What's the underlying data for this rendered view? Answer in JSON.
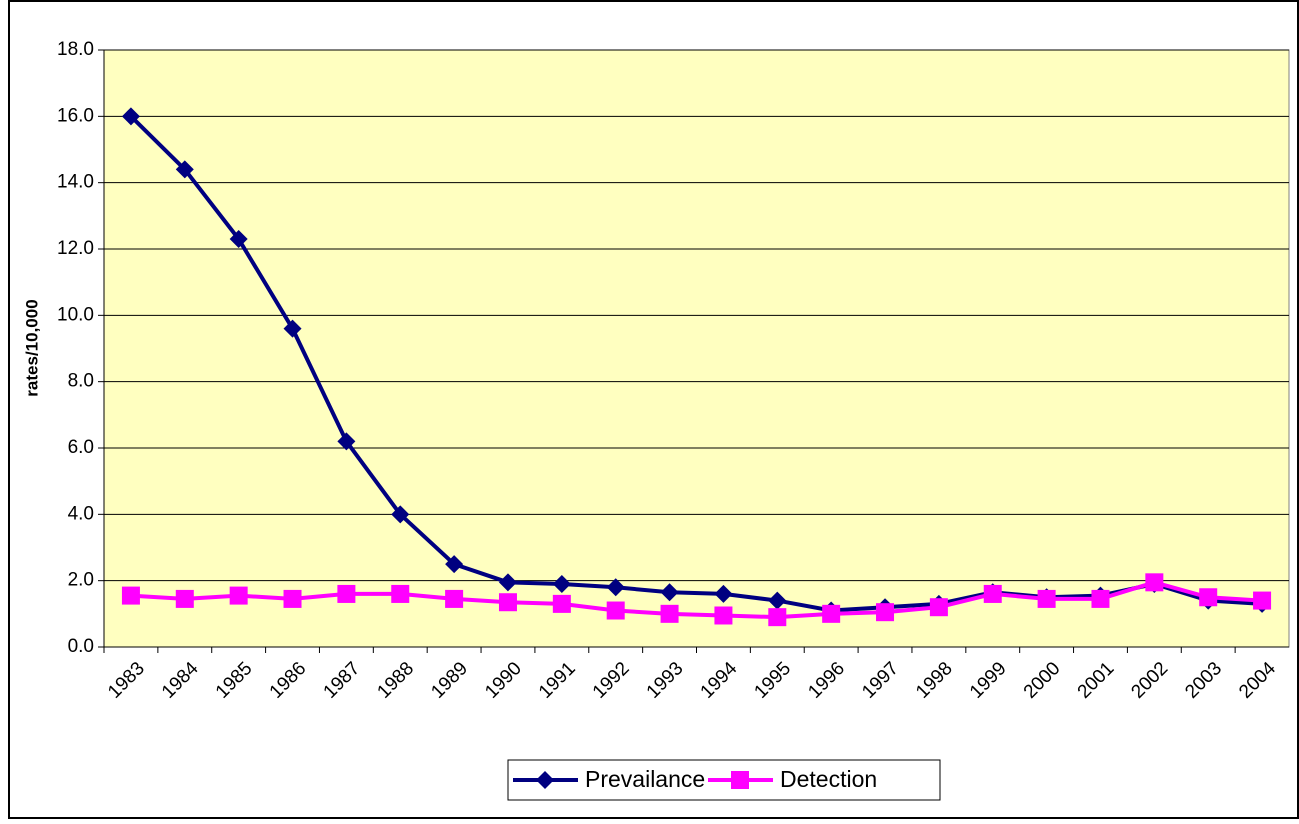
{
  "chart_data": {
    "type": "line",
    "y_label": "rates/10,000",
    "categories": [
      "1983",
      "1984",
      "1985",
      "1986",
      "1987",
      "1988",
      "1989",
      "1990",
      "1991",
      "1992",
      "1993",
      "1994",
      "1995",
      "1996",
      "1997",
      "1998",
      "1999",
      "2000",
      "2001",
      "2002",
      "2003",
      "2004"
    ],
    "series": [
      {
        "name": "Prevailance",
        "color": "#000080",
        "marker": "diamond",
        "values": [
          16.0,
          14.4,
          12.3,
          9.6,
          6.2,
          4.0,
          2.5,
          1.95,
          1.9,
          1.8,
          1.65,
          1.6,
          1.4,
          1.1,
          1.2,
          1.3,
          1.65,
          1.5,
          1.55,
          1.9,
          1.4,
          1.3
        ]
      },
      {
        "name": "Detection",
        "color": "#ff00ff",
        "marker": "square",
        "values": [
          1.55,
          1.45,
          1.55,
          1.45,
          1.6,
          1.6,
          1.45,
          1.35,
          1.3,
          1.1,
          1.0,
          0.95,
          0.9,
          1.0,
          1.05,
          1.2,
          1.6,
          1.45,
          1.45,
          1.95,
          1.5,
          1.4
        ]
      }
    ],
    "ylim": [
      0,
      18
    ],
    "yticks": [
      {
        "value": 0,
        "label": "0.0"
      },
      {
        "value": 2,
        "label": "2.0"
      },
      {
        "value": 4,
        "label": "4.0"
      },
      {
        "value": 6,
        "label": "6.0"
      },
      {
        "value": 8,
        "label": "8.0"
      },
      {
        "value": 10,
        "label": "10.0"
      },
      {
        "value": 12,
        "label": "12.0"
      },
      {
        "value": 14,
        "label": "14.0"
      },
      {
        "value": 16,
        "label": "16.0"
      },
      {
        "value": 18,
        "label": "18.0"
      }
    ],
    "grid": true,
    "legend": "bottom",
    "plot_background": "#ffffc0"
  }
}
